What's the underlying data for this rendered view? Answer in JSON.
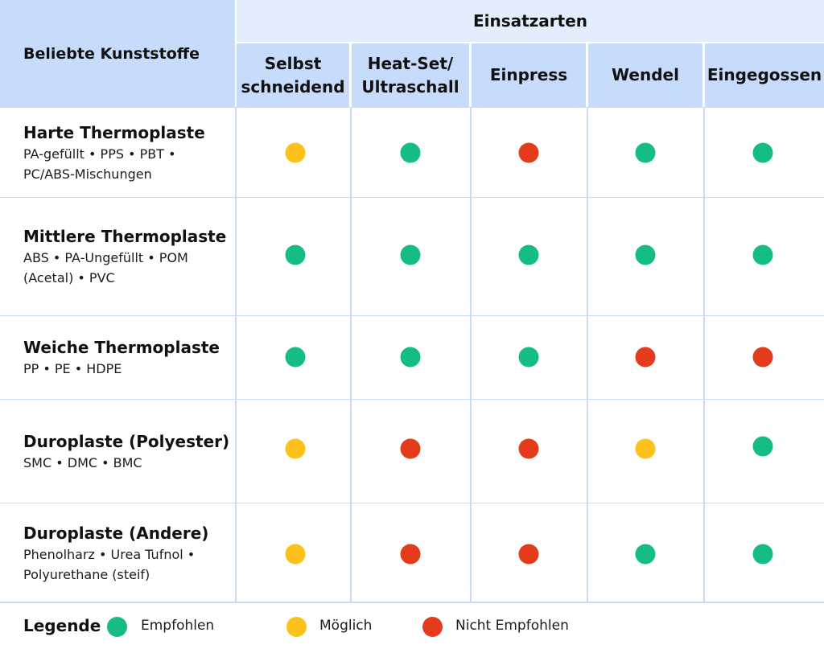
{
  "header": {
    "corner_label": "Beliebte Kunststoffe",
    "group_label": "Einsatzarten",
    "columns": [
      {
        "line1": "Selbst",
        "line2": "schneidend"
      },
      {
        "line1": "Heat-Set/",
        "line2": "Ultraschall"
      },
      {
        "line1": "Einpress",
        "line2": ""
      },
      {
        "line1": "Wendel",
        "line2": ""
      },
      {
        "line1": "Eingegossen",
        "line2": ""
      }
    ]
  },
  "rows": [
    {
      "title": "Harte Thermoplaste",
      "sub1": "PA-gefüllt • PPS • PBT •",
      "sub2": "PC/ABS-Mischungen",
      "ratings": [
        "possible",
        "recommended",
        "not_recommended",
        "recommended",
        "recommended"
      ]
    },
    {
      "title": "Mittlere Thermoplaste",
      "sub1": "ABS • PA-Ungefüllt • POM",
      "sub2": "(Acetal) • PVC",
      "ratings": [
        "recommended",
        "recommended",
        "recommended",
        "recommended",
        "recommended"
      ]
    },
    {
      "title": "Weiche Thermoplaste",
      "sub1": "PP • PE • HDPE",
      "sub2": "",
      "ratings": [
        "recommended",
        "recommended",
        "recommended",
        "not_recommended",
        "not_recommended"
      ]
    },
    {
      "title": "Duroplaste (Polyester)",
      "sub1": "SMC • DMC • BMC",
      "sub2": "",
      "ratings": [
        "possible",
        "not_recommended",
        "not_recommended",
        "possible",
        "recommended"
      ]
    },
    {
      "title": "Duroplaste (Andere)",
      "sub1": "Phenolharz • Urea Tufnol •",
      "sub2": "Polyurethane (steif)",
      "ratings": [
        "possible",
        "not_recommended",
        "not_recommended",
        "recommended",
        "recommended"
      ]
    }
  ],
  "legend": {
    "title": "Legende",
    "items": [
      {
        "key": "recommended",
        "label": "Empfohlen"
      },
      {
        "key": "possible",
        "label": "Möglich"
      },
      {
        "key": "not_recommended",
        "label": "Nicht Empfohlen"
      }
    ]
  },
  "colors": {
    "recommended": "#16bc86",
    "possible": "#fcc21b",
    "not_recommended": "#e43b1c",
    "header_bg": "#c6dcfa",
    "group_bg": "#e2eefd",
    "grid": "#c8dcf5"
  }
}
